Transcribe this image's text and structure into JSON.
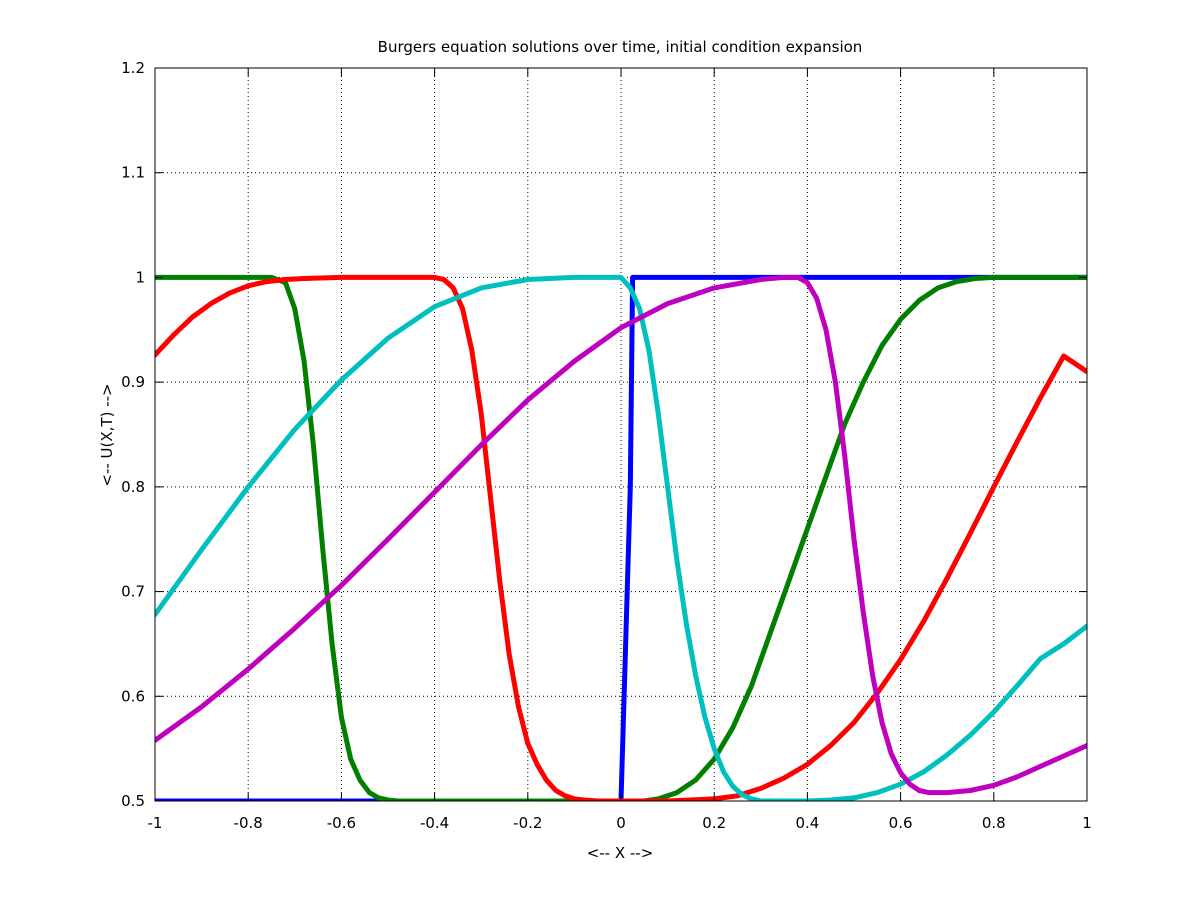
{
  "chart_data": {
    "type": "line",
    "title": "Burgers equation solutions over time, initial condition expansion",
    "xlabel": "<-- X -->",
    "ylabel": "<-- U(X,T) -->",
    "xlim": [
      -1,
      1
    ],
    "ylim": [
      0.5,
      1.2
    ],
    "xticks": [
      "-1",
      "-0.8",
      "-0.6",
      "-0.4",
      "-0.2",
      "0",
      "0.2",
      "0.4",
      "0.6",
      "0.8",
      "1"
    ],
    "yticks": [
      "0.5",
      "0.6",
      "0.7",
      "0.8",
      "0.9",
      "1",
      "1.1",
      "1.2"
    ],
    "grid": true,
    "series": [
      {
        "color": "#0000ff",
        "x": [
          -1,
          -0.5,
          0.0,
          0.02,
          0.025,
          0.1,
          0.4,
          0.75,
          1
        ],
        "y": [
          0.5,
          0.5,
          0.5,
          0.8,
          1.0,
          1.0,
          1.0,
          1.0,
          1.0
        ]
      },
      {
        "color": "#007f00",
        "x": [
          -1,
          -0.8,
          -0.75,
          -0.72,
          -0.7,
          -0.68,
          -0.66,
          -0.64,
          -0.62,
          -0.6,
          -0.58,
          -0.56,
          -0.54,
          -0.52,
          -0.5,
          -0.48,
          -0.4,
          -0.2,
          0.0,
          0.05,
          0.08,
          0.12,
          0.16,
          0.2,
          0.24,
          0.28,
          0.32,
          0.36,
          0.4,
          0.44,
          0.48,
          0.52,
          0.56,
          0.6,
          0.64,
          0.68,
          0.72,
          0.76,
          0.8,
          0.9,
          1
        ],
        "y": [
          1.0,
          1.0,
          1.0,
          0.995,
          0.97,
          0.92,
          0.84,
          0.74,
          0.65,
          0.58,
          0.54,
          0.52,
          0.508,
          0.503,
          0.501,
          0.5,
          0.5,
          0.5,
          0.5,
          0.5,
          0.502,
          0.508,
          0.52,
          0.54,
          0.57,
          0.61,
          0.66,
          0.71,
          0.76,
          0.81,
          0.86,
          0.9,
          0.935,
          0.96,
          0.978,
          0.99,
          0.996,
          0.999,
          1.0,
          1.0,
          1.0
        ]
      },
      {
        "color": "#ff0000",
        "x": [
          -1,
          -0.96,
          -0.92,
          -0.88,
          -0.84,
          -0.8,
          -0.76,
          -0.72,
          -0.68,
          -0.6,
          -0.5,
          -0.4,
          -0.38,
          -0.36,
          -0.34,
          -0.32,
          -0.3,
          -0.28,
          -0.26,
          -0.24,
          -0.22,
          -0.2,
          -0.18,
          -0.16,
          -0.14,
          -0.12,
          -0.1,
          -0.08,
          -0.05,
          0.0,
          0.1,
          0.2,
          0.25,
          0.3,
          0.35,
          0.4,
          0.45,
          0.5,
          0.55,
          0.6,
          0.65,
          0.7,
          0.75,
          0.8,
          0.85,
          0.9,
          0.95,
          1.0
        ],
        "y": [
          0.926,
          0.945,
          0.962,
          0.975,
          0.985,
          0.992,
          0.996,
          0.998,
          0.999,
          1.0,
          1.0,
          1.0,
          0.998,
          0.99,
          0.97,
          0.93,
          0.87,
          0.79,
          0.71,
          0.64,
          0.59,
          0.555,
          0.535,
          0.52,
          0.51,
          0.505,
          0.502,
          0.501,
          0.5,
          0.5,
          0.5,
          0.502,
          0.505,
          0.512,
          0.522,
          0.535,
          0.553,
          0.575,
          0.603,
          0.635,
          0.672,
          0.713,
          0.756,
          0.8,
          0.843,
          0.885,
          0.925,
          0.91
        ]
      },
      {
        "color": "#00bfbf",
        "x": [
          -1,
          -0.9,
          -0.8,
          -0.7,
          -0.6,
          -0.5,
          -0.4,
          -0.3,
          -0.2,
          -0.1,
          0.0,
          0.02,
          0.04,
          0.06,
          0.08,
          0.1,
          0.12,
          0.14,
          0.16,
          0.18,
          0.2,
          0.22,
          0.24,
          0.26,
          0.28,
          0.3,
          0.35,
          0.4,
          0.45,
          0.5,
          0.55,
          0.6,
          0.65,
          0.7,
          0.75,
          0.8,
          0.85,
          0.9,
          0.95,
          1.0
        ],
        "y": [
          0.678,
          0.74,
          0.8,
          0.855,
          0.902,
          0.942,
          0.972,
          0.99,
          0.998,
          1.0,
          1.0,
          0.99,
          0.97,
          0.93,
          0.87,
          0.8,
          0.73,
          0.67,
          0.62,
          0.58,
          0.55,
          0.528,
          0.514,
          0.506,
          0.502,
          0.5,
          0.5,
          0.5,
          0.501,
          0.503,
          0.508,
          0.516,
          0.528,
          0.544,
          0.563,
          0.585,
          0.61,
          0.636,
          0.65,
          0.667
        ]
      },
      {
        "color": "#bf00bf",
        "x": [
          -1,
          -0.9,
          -0.8,
          -0.7,
          -0.6,
          -0.5,
          -0.4,
          -0.3,
          -0.2,
          -0.1,
          0.0,
          0.1,
          0.2,
          0.3,
          0.35,
          0.38,
          0.4,
          0.42,
          0.44,
          0.46,
          0.48,
          0.5,
          0.52,
          0.54,
          0.56,
          0.58,
          0.6,
          0.62,
          0.64,
          0.66,
          0.68,
          0.7,
          0.75,
          0.8,
          0.85,
          0.9,
          0.95,
          1.0
        ],
        "y": [
          0.558,
          0.59,
          0.626,
          0.665,
          0.706,
          0.75,
          0.795,
          0.84,
          0.883,
          0.92,
          0.952,
          0.975,
          0.99,
          0.998,
          1.0,
          1.0,
          0.995,
          0.98,
          0.95,
          0.9,
          0.83,
          0.75,
          0.68,
          0.62,
          0.575,
          0.545,
          0.527,
          0.516,
          0.51,
          0.508,
          0.508,
          0.508,
          0.51,
          0.515,
          0.523,
          0.533,
          0.543,
          0.553
        ]
      }
    ]
  }
}
